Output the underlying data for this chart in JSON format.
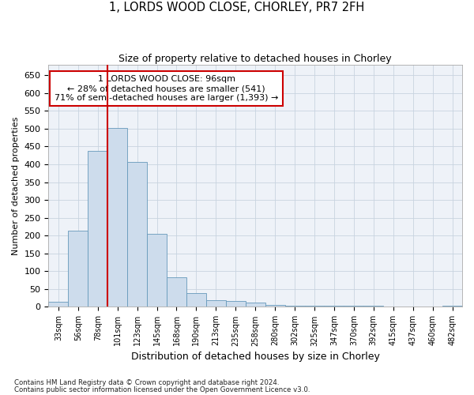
{
  "title_line1": "1, LORDS WOOD CLOSE, CHORLEY, PR7 2FH",
  "title_line2": "Size of property relative to detached houses in Chorley",
  "xlabel": "Distribution of detached houses by size in Chorley",
  "ylabel": "Number of detached properties",
  "footnote1": "Contains HM Land Registry data © Crown copyright and database right 2024.",
  "footnote2": "Contains public sector information licensed under the Open Government Licence v3.0.",
  "annotation_line1": "1 LORDS WOOD CLOSE: 96sqm",
  "annotation_line2": "← 28% of detached houses are smaller (541)",
  "annotation_line3": "71% of semi-detached houses are larger (1,393) →",
  "bar_color": "#cddcec",
  "bar_edge_color": "#6699bb",
  "vline_color": "#cc0000",
  "grid_color": "#c8d4e0",
  "background_color": "#eef2f8",
  "annotation_box_color": "#ffffff",
  "annotation_box_edge": "#cc0000",
  "categories": [
    "33sqm",
    "56sqm",
    "78sqm",
    "101sqm",
    "123sqm",
    "145sqm",
    "168sqm",
    "190sqm",
    "213sqm",
    "235sqm",
    "258sqm",
    "280sqm",
    "302sqm",
    "325sqm",
    "347sqm",
    "370sqm",
    "392sqm",
    "415sqm",
    "437sqm",
    "460sqm",
    "482sqm"
  ],
  "values": [
    15,
    213,
    437,
    503,
    406,
    206,
    83,
    38,
    18,
    17,
    11,
    5,
    4,
    4,
    4,
    4,
    4,
    0,
    0,
    0,
    4
  ],
  "ylim": [
    0,
    680
  ],
  "yticks": [
    0,
    50,
    100,
    150,
    200,
    250,
    300,
    350,
    400,
    450,
    500,
    550,
    600,
    650
  ],
  "vline_x_index": 3.0
}
